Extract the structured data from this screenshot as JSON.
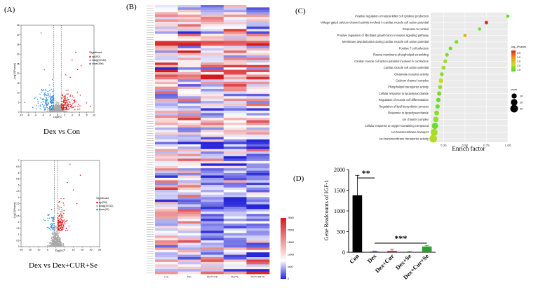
{
  "panels": {
    "a": "(A)",
    "b": "(B)",
    "c": "(C)",
    "d": "(D)"
  },
  "chart_data": [
    {
      "id": "volcano-top",
      "type": "scatter",
      "title": "Dex vs Con",
      "xlabel": "Log2FC",
      "ylabel": "-Log10(Pvalue)",
      "xlim": [
        -10,
        10
      ],
      "ylim": [
        0,
        45
      ],
      "xticks": [
        -10,
        -8,
        -6,
        -4,
        -2,
        0,
        2,
        4,
        6,
        8,
        10
      ],
      "yticks": [
        0,
        5,
        10,
        15,
        20,
        25,
        30,
        35,
        40,
        45
      ],
      "legend_title": "Significant",
      "legend": [
        {
          "name": "up(302)",
          "color": "#e31a1c"
        },
        {
          "name": "nosig(29130)",
          "color": "#a8a8a8"
        },
        {
          "name": "down(396)",
          "color": "#2b8cd8"
        }
      ],
      "thresholds": {
        "log2fc": [
          -1,
          1
        ]
      }
    },
    {
      "id": "volcano-bottom",
      "type": "scatter",
      "title": "Dex vs Dex+CUR+Se",
      "xlabel": "Log2FC",
      "ylabel": "-Log10(Pvalue)",
      "xlim": [
        -20,
        25
      ],
      "ylim": [
        0,
        7
      ],
      "xticks": [
        -20,
        -15,
        -10,
        -5,
        0,
        5,
        10,
        15,
        20,
        25
      ],
      "yticks": [
        0,
        0.5,
        1,
        1.5,
        2,
        2.5,
        3,
        3.5,
        4,
        4.5,
        5,
        5.5,
        6,
        6.5,
        7
      ],
      "legend_title": "Significant",
      "legend": [
        {
          "name": "up(299)",
          "color": "#e31a1c"
        },
        {
          "name": "nosig(29722)",
          "color": "#a8a8a8"
        },
        {
          "name": "down(92)",
          "color": "#2b8cd8"
        }
      ],
      "thresholds": {
        "log2fc": [
          -1,
          1
        ]
      }
    },
    {
      "id": "heatmap",
      "type": "heatmap",
      "columns": [
        "Con",
        "Dex",
        "Dex+CUR",
        "Dex+Se",
        "Dex+CUR+Se"
      ],
      "n_rows": 112,
      "colorbar": {
        "min": 0,
        "max": 25000,
        "ticks": [
          0,
          5000,
          10000,
          15000,
          20000,
          25000
        ],
        "low": "#2626d9",
        "mid": "#ffffff",
        "high": "#d7191c"
      }
    },
    {
      "id": "enrichment",
      "type": "scatter",
      "xlabel": "Enrich factor",
      "xlim": [
        0.1,
        1.0
      ],
      "xticks": [
        0.25,
        0.5,
        0.75,
        1.0
      ],
      "xtick_labels": [
        "0.25",
        "0.50",
        "0.75",
        "1.00"
      ],
      "color_legend_title": "-log₁₀(Pvalue)",
      "color_ticks": [
        1.5,
        2.0,
        2.5,
        3.0,
        3.5
      ],
      "size_legend_title": "count",
      "size_ticks": [
        10,
        20,
        30
      ],
      "terms": [
        {
          "term": "Positive regulation of natural killer cell cytokine production",
          "x": 1.0,
          "p": 1.4,
          "count": 2
        },
        {
          "term": "Voltage-gated calcium channel activity involved in cardiac muscle cell action potential",
          "x": 0.75,
          "p": 3.7,
          "count": 3
        },
        {
          "term": "Response to cortisol",
          "x": 0.67,
          "p": 1.6,
          "count": 2
        },
        {
          "term": "Positive regulation of fibroblast growth factor receptor signaling pathway",
          "x": 0.5,
          "p": 2.7,
          "count": 2
        },
        {
          "term": "Membrane depolarization during cardiac muscle cell action potential",
          "x": 0.4,
          "p": 1.7,
          "count": 4
        },
        {
          "term": "Positive T cell selection",
          "x": 0.33,
          "p": 1.5,
          "count": 3
        },
        {
          "term": "Plasma membrane phospholipid scrambling",
          "x": 0.29,
          "p": 1.6,
          "count": 3
        },
        {
          "term": "Cardiac muscle cell action potential involved in contraction",
          "x": 0.27,
          "p": 1.8,
          "count": 4
        },
        {
          "term": "Cardiac muscle cell action potential",
          "x": 0.25,
          "p": 1.9,
          "count": 5
        },
        {
          "term": "Glutamate receptor activity",
          "x": 0.23,
          "p": 1.7,
          "count": 4
        },
        {
          "term": "Calcium channel complex",
          "x": 0.22,
          "p": 2.1,
          "count": 7
        },
        {
          "term": "Phospholipid transporter activity",
          "x": 0.21,
          "p": 1.8,
          "count": 5
        },
        {
          "term": "Cellular response to lipopolysaccharide",
          "x": 0.2,
          "p": 1.6,
          "count": 6
        },
        {
          "term": "Regulation of muscle cell differentiation",
          "x": 0.19,
          "p": 1.5,
          "count": 6
        },
        {
          "term": "Regulation of lipid biosynthetic process",
          "x": 0.18,
          "p": 1.5,
          "count": 6
        },
        {
          "term": "Response to lipopolysaccharide",
          "x": 0.17,
          "p": 1.7,
          "count": 8
        },
        {
          "term": "Ion channel complex",
          "x": 0.16,
          "p": 1.8,
          "count": 12
        },
        {
          "term": "Cellular response to oxygen-containing compound",
          "x": 0.15,
          "p": 1.5,
          "count": 18
        },
        {
          "term": "Ion transmembrane transport",
          "x": 0.14,
          "p": 1.9,
          "count": 24
        },
        {
          "term": "Ion transmembrane transporter activity",
          "x": 0.13,
          "p": 2.0,
          "count": 30
        }
      ]
    },
    {
      "id": "igf1-bar",
      "type": "bar",
      "ylabel": "Gene Readcounts of IGF-1",
      "ylim": [
        0,
        2000
      ],
      "yticks": [
        0,
        500,
        1000,
        1500,
        2000
      ],
      "categories": [
        "Con",
        "Dex",
        "Dex+Cur",
        "Dex+Se",
        "Dex+Cur+Se"
      ],
      "values": [
        1380,
        20,
        35,
        15,
        140
      ],
      "errors": [
        480,
        10,
        40,
        10,
        25
      ],
      "colors": [
        "#000000",
        "#5a3a9a",
        "#d62728",
        "#4f9a3a",
        "#2ca02c"
      ],
      "significance": [
        {
          "label": "**",
          "from": 0,
          "to": 1
        },
        {
          "label": "***",
          "from": 1,
          "to": 4
        }
      ]
    }
  ]
}
